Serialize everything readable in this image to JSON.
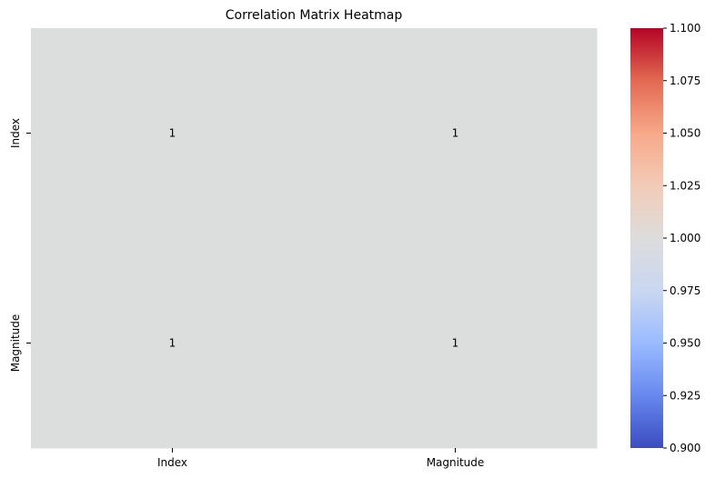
{
  "chart_data": {
    "type": "heatmap",
    "title": "Correlation Matrix Heatmap",
    "xlabel": "",
    "ylabel": "",
    "x_categories": [
      "Index",
      "Magnitude"
    ],
    "y_categories": [
      "Index",
      "Magnitude"
    ],
    "matrix": [
      [
        1,
        1
      ],
      [
        1,
        1
      ]
    ],
    "annotations": [
      "1",
      "1",
      "1",
      "1"
    ],
    "colormap": "coolwarm",
    "cell_color": "#dcdddd",
    "colorbar": {
      "min": 0.9,
      "max": 1.1,
      "ticks": [
        "0.900",
        "0.925",
        "0.950",
        "0.975",
        "1.000",
        "1.025",
        "1.050",
        "1.075",
        "1.100"
      ],
      "gradient": [
        "#3b4cc0",
        "#6788ee",
        "#9abbff",
        "#c9d7f0",
        "#dddcdc",
        "#f2cbb7",
        "#f7a889",
        "#e26952",
        "#b40426"
      ]
    }
  }
}
